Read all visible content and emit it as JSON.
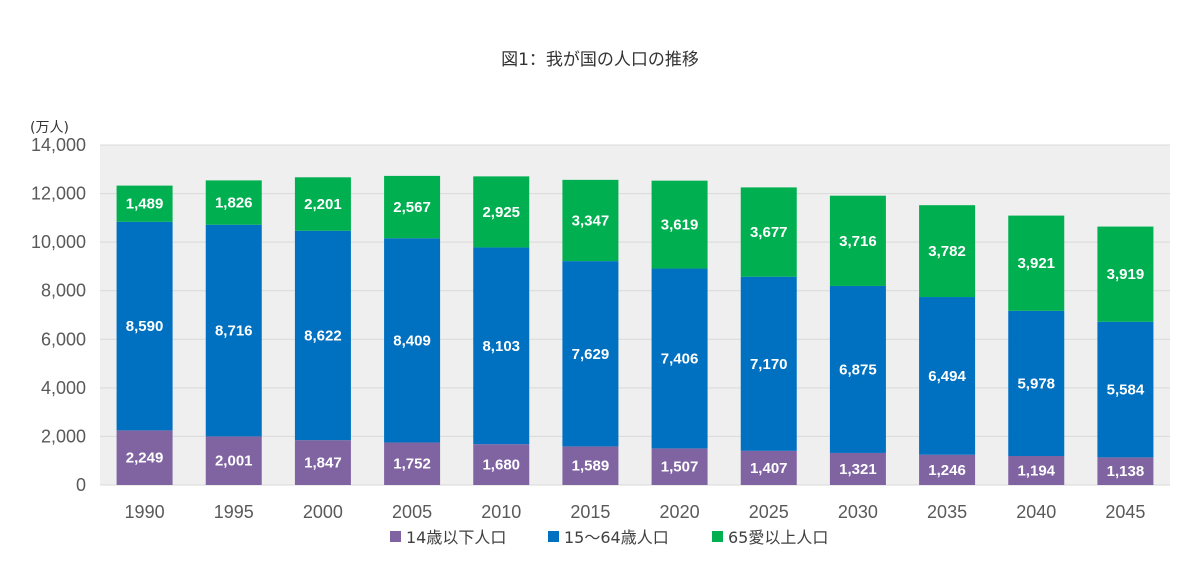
{
  "chart_data": {
    "type": "bar",
    "stacked": true,
    "title": "図1：我が国の人口の推移",
    "ylabel": "(万人)",
    "ylim": [
      0,
      14000
    ],
    "yticks": [
      "0",
      "2,000",
      "4,000",
      "6,000",
      "8,000",
      "10,000",
      "12,000",
      "14,000"
    ],
    "grid": true,
    "legend_position": "bottom",
    "categories": [
      "1990",
      "1995",
      "2000",
      "2005",
      "2010",
      "2015",
      "2020",
      "2025",
      "2030",
      "2035",
      "2040",
      "2045"
    ],
    "series": [
      {
        "name": "14歳以下人口",
        "color": "#8064A2",
        "values": [
          2249,
          2001,
          1847,
          1752,
          1680,
          1589,
          1507,
          1407,
          1321,
          1246,
          1194,
          1138
        ],
        "labels": [
          "2,249",
          "2,001",
          "1,847",
          "1,752",
          "1,680",
          "1,589",
          "1,507",
          "1,407",
          "1,321",
          "1,246",
          "1,194",
          "1,138"
        ]
      },
      {
        "name": "15～64歳人口",
        "color": "#0070C0",
        "values": [
          8590,
          8716,
          8622,
          8409,
          8103,
          7629,
          7406,
          7170,
          6875,
          6494,
          5978,
          5584
        ],
        "labels": [
          "8,590",
          "8,716",
          "8,622",
          "8,409",
          "8,103",
          "7,629",
          "7,406",
          "7,170",
          "6,875",
          "6,494",
          "5,978",
          "5,584"
        ]
      },
      {
        "name": "65愛以上人口",
        "color": "#00B050",
        "values": [
          1489,
          1826,
          2201,
          2567,
          2925,
          3347,
          3619,
          3677,
          3716,
          3782,
          3921,
          3919
        ],
        "labels": [
          "1,489",
          "1,826",
          "2,201",
          "2,567",
          "2,925",
          "3,347",
          "3,619",
          "3,677",
          "3,716",
          "3,782",
          "3,921",
          "3,919"
        ]
      }
    ],
    "colors": {
      "plot_background": "#EFEFEF",
      "gridline": "#D9D9D9"
    }
  }
}
